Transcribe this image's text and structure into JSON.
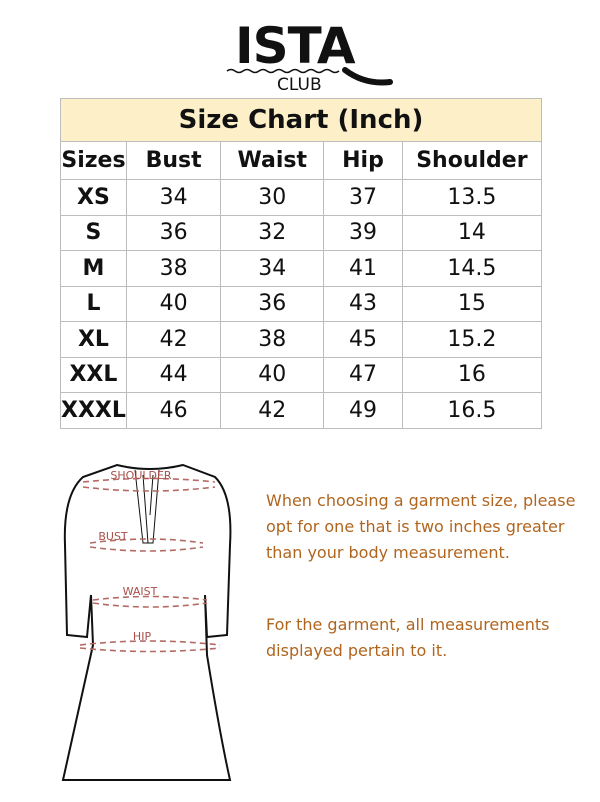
{
  "logo": {
    "brand": "ISTA",
    "sub": "CLUB"
  },
  "chart": {
    "title": "Size Chart (Inch)",
    "columns": [
      "Sizes",
      "Bust",
      "Waist",
      "Hip",
      "Shoulder"
    ],
    "rows": [
      [
        "XS",
        "34",
        "30",
        "37",
        "13.5"
      ],
      [
        "S",
        "36",
        "32",
        "39",
        "14"
      ],
      [
        "M",
        "38",
        "34",
        "41",
        "14.5"
      ],
      [
        "L",
        "40",
        "36",
        "43",
        "15"
      ],
      [
        "XL",
        "42",
        "38",
        "45",
        "15.2"
      ],
      [
        "XXL",
        "44",
        "40",
        "47",
        "16"
      ],
      [
        "XXXL",
        "46",
        "42",
        "49",
        "16.5"
      ]
    ]
  },
  "diagram": {
    "labels": [
      "SHOULDER",
      "BUST",
      "WAIST",
      "HIP"
    ],
    "label_color": "#a8504a"
  },
  "notes": [
    "When choosing a garment size, please opt for one that is two inches greater than your body measurement.",
    "For the garment, all measurements displayed pertain to it."
  ],
  "colors": {
    "title_bg": "#fdf0c9",
    "note_text": "#b0651f"
  }
}
